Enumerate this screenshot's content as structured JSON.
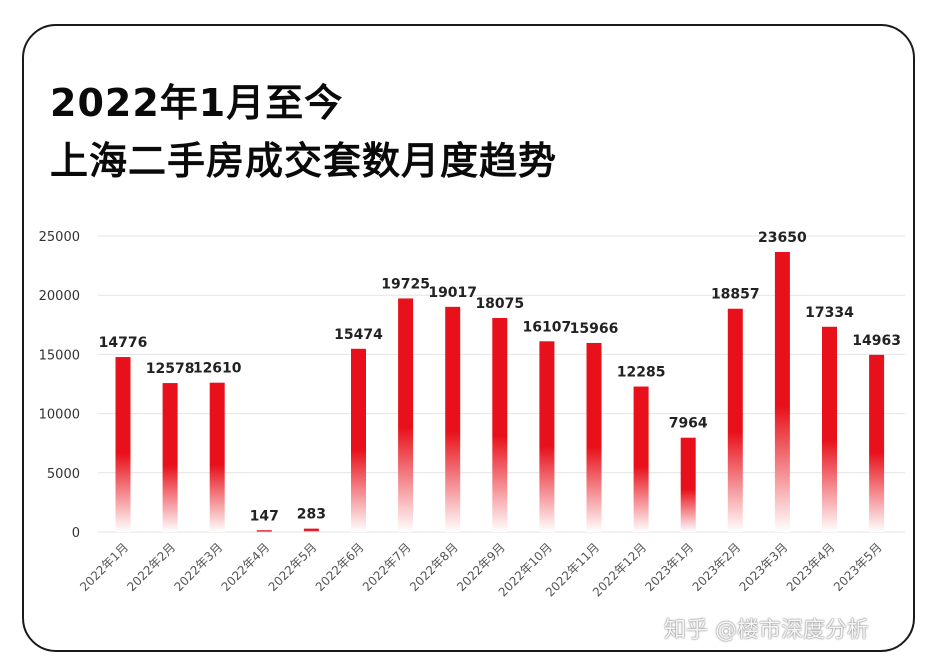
{
  "title_line1": "2022年1月至今",
  "title_line2": "上海二手房成交套数月度趋势",
  "watermark": "知乎 @楼市深度分析",
  "colors": {
    "bar_top": "#e8101a",
    "bar_bottom": "#ffffff",
    "grid": "#e4e4e4",
    "text": "#333333"
  },
  "chart_data": {
    "type": "bar",
    "title": "2022年1月至今 上海二手房成交套数月度趋势",
    "xlabel": "",
    "ylabel": "",
    "ylim": [
      0,
      25000
    ],
    "yticks": [
      "0",
      "5000",
      "10000",
      "15000",
      "20000",
      "25000"
    ],
    "grid": true,
    "categories": [
      "2022年1月",
      "2022年2月",
      "2022年3月",
      "2022年4月",
      "2022年5月",
      "2022年6月",
      "2022年7月",
      "2022年8月",
      "2022年9月",
      "2022年10月",
      "2022年11月",
      "2022年12月",
      "2023年1月",
      "2023年2月",
      "2023年3月",
      "2023年4月",
      "2023年5月"
    ],
    "values": [
      14776,
      12578,
      12610,
      147,
      283,
      15474,
      19725,
      19017,
      18075,
      16107,
      15966,
      12285,
      7964,
      18857,
      23650,
      17334,
      14963
    ]
  }
}
